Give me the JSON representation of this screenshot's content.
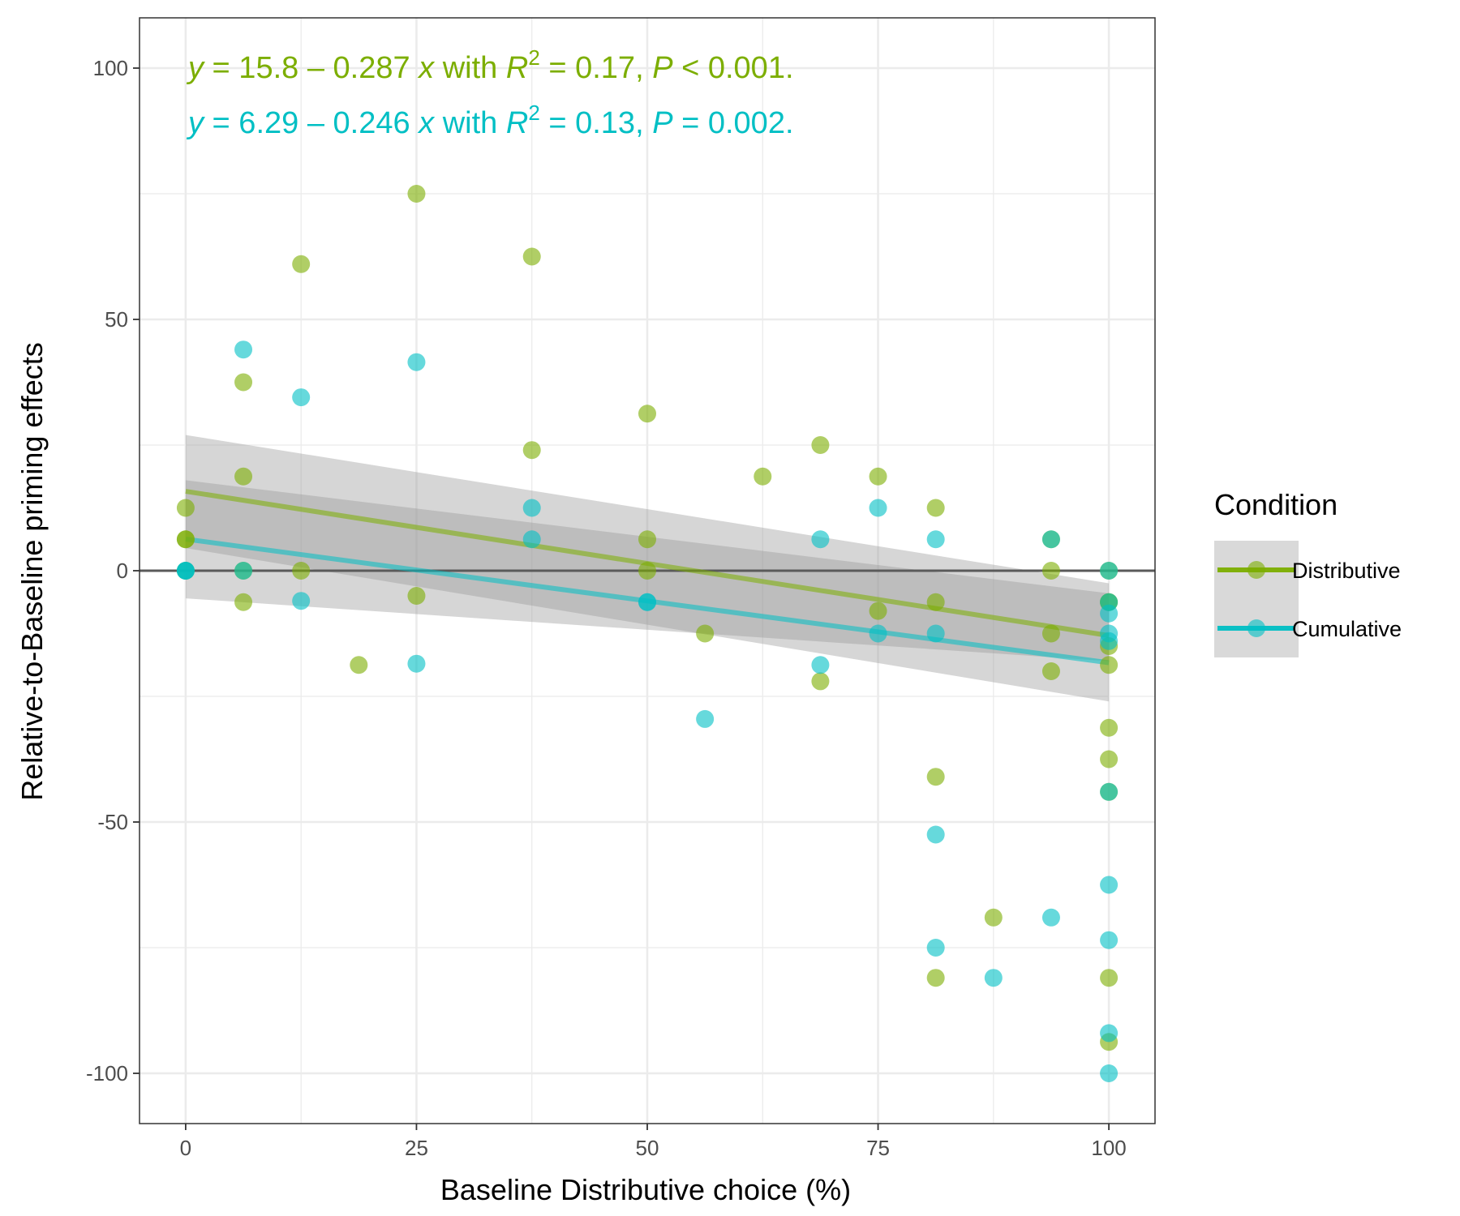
{
  "chart_data": {
    "type": "scatter",
    "xlabel": "Baseline Distributive choice (%)",
    "ylabel": "Relative-to-Baseline priming effects",
    "xlim": [
      -5,
      105
    ],
    "ylim": [
      -110,
      110
    ],
    "x_ticks": [
      0,
      25,
      50,
      75,
      100
    ],
    "y_ticks": [
      -100,
      -50,
      0,
      50,
      100
    ],
    "x_tick_labels": [
      "0",
      "25",
      "50",
      "75",
      "100"
    ],
    "y_tick_labels": [
      "-100",
      "-50",
      "0",
      "50",
      "100"
    ],
    "grid": true,
    "reference_line_y": 0,
    "legend": {
      "title": "Condition",
      "placement": "right",
      "entries": [
        "Distributive",
        "Cumulative"
      ]
    },
    "annotations": [
      {
        "series": "Distributive",
        "y_var": "y",
        "eq": " = 15.8 – 0.287 ",
        "x_var": "x",
        "with": " with ",
        "r_var": "R",
        "sup": "2",
        "r2": " = 0.17, ",
        "p_var": "P",
        "p": " < 0.001."
      },
      {
        "series": "Cumulative",
        "y_var": "y",
        "eq": " = 6.29 – 0.246 ",
        "x_var": "x",
        "with": " with ",
        "r_var": "R",
        "sup": "2",
        "r2": " = 0.13, ",
        "p_var": "P",
        "p": " = 0.002."
      }
    ],
    "series": [
      {
        "name": "Distributive",
        "color": "#7cae00",
        "fit": {
          "intercept": 15.8,
          "slope": -0.287,
          "band_x": [
            0,
            100
          ],
          "band_lower": [
            4.5,
            -26.0
          ],
          "band_upper": [
            27.0,
            -2.5
          ]
        },
        "points": [
          [
            0,
            12.5
          ],
          [
            0,
            6.25
          ],
          [
            0,
            6.25
          ],
          [
            0,
            0
          ],
          [
            6.25,
            37.5
          ],
          [
            6.25,
            18.75
          ],
          [
            6.25,
            0
          ],
          [
            6.25,
            -6.25
          ],
          [
            12.5,
            61.0
          ],
          [
            12.5,
            0
          ],
          [
            18.75,
            -18.75
          ],
          [
            25,
            75.0
          ],
          [
            25,
            -5.0
          ],
          [
            37.5,
            62.5
          ],
          [
            37.5,
            24.0
          ],
          [
            50,
            31.25
          ],
          [
            50,
            6.25
          ],
          [
            50,
            0
          ],
          [
            56.25,
            -12.5
          ],
          [
            62.5,
            18.75
          ],
          [
            68.75,
            25.0
          ],
          [
            68.75,
            -22.0
          ],
          [
            75,
            18.75
          ],
          [
            75,
            -8.0
          ],
          [
            81.25,
            12.5
          ],
          [
            81.25,
            -6.25
          ],
          [
            81.25,
            -41.0
          ],
          [
            81.25,
            -81.0
          ],
          [
            87.5,
            -69.0
          ],
          [
            93.75,
            6.25
          ],
          [
            93.75,
            0
          ],
          [
            93.75,
            -12.5
          ],
          [
            93.75,
            -20.0
          ],
          [
            100,
            0
          ],
          [
            100,
            -6.25
          ],
          [
            100,
            -6.25
          ],
          [
            100,
            -15.0
          ],
          [
            100,
            -18.75
          ],
          [
            100,
            -31.25
          ],
          [
            100,
            -37.5
          ],
          [
            100,
            -44.0
          ],
          [
            100,
            -81.0
          ],
          [
            100,
            -93.75
          ]
        ]
      },
      {
        "name": "Cumulative",
        "color": "#00bfc4",
        "fit": {
          "intercept": 6.29,
          "slope": -0.246,
          "band_x": [
            0,
            100
          ],
          "band_lower": [
            -5.5,
            -18.0
          ],
          "band_upper": [
            18.0,
            -4.5
          ]
        },
        "points": [
          [
            0,
            0
          ],
          [
            0,
            0
          ],
          [
            0,
            0
          ],
          [
            6.25,
            44.0
          ],
          [
            6.25,
            0
          ],
          [
            12.5,
            34.5
          ],
          [
            12.5,
            -6.0
          ],
          [
            25,
            41.5
          ],
          [
            25,
            -18.5
          ],
          [
            37.5,
            12.5
          ],
          [
            37.5,
            6.25
          ],
          [
            50,
            -6.25
          ],
          [
            50,
            -6.25
          ],
          [
            56.25,
            -29.5
          ],
          [
            68.75,
            6.25
          ],
          [
            68.75,
            -18.75
          ],
          [
            75,
            12.5
          ],
          [
            75,
            -12.5
          ],
          [
            81.25,
            6.25
          ],
          [
            81.25,
            -12.5
          ],
          [
            81.25,
            -52.5
          ],
          [
            81.25,
            -75.0
          ],
          [
            87.5,
            -81.0
          ],
          [
            93.75,
            6.25
          ],
          [
            93.75,
            -69.0
          ],
          [
            100,
            0
          ],
          [
            100,
            -6.25
          ],
          [
            100,
            -8.5
          ],
          [
            100,
            -12.5
          ],
          [
            100,
            -14.0
          ],
          [
            100,
            -44.0
          ],
          [
            100,
            -62.5
          ],
          [
            100,
            -73.5
          ],
          [
            100,
            -92.0
          ],
          [
            100,
            -100.0
          ]
        ]
      }
    ]
  }
}
